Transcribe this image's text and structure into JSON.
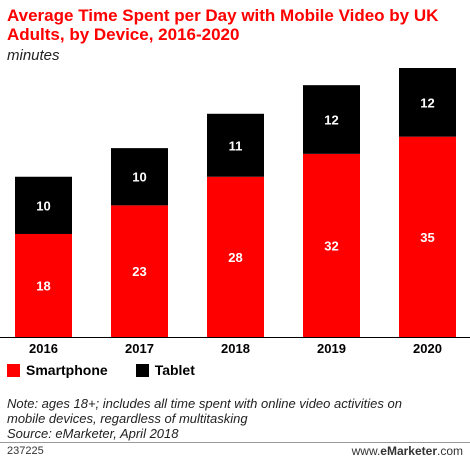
{
  "title": "Average Time Spent per Day with Mobile Video by UK Adults, by Device, 2016-2020",
  "subtitle": "minutes",
  "note_lines": [
    "Note: ages 18+; includes all time spent with online video activities on",
    "mobile devices, regardless of multitasking",
    "Source: eMarketer, April 2018"
  ],
  "footer_id": "237225",
  "brand": {
    "prefix": "www.",
    "name": "eMarketer",
    "suffix": ".com"
  },
  "colors": {
    "smartphone": "#ff0000",
    "tablet": "#000000"
  },
  "chart_data": {
    "type": "bar",
    "stacked": true,
    "categories": [
      "2016",
      "2017",
      "2018",
      "2019",
      "2020"
    ],
    "series": [
      {
        "name": "Smartphone",
        "values": [
          18,
          23,
          28,
          32,
          35
        ]
      },
      {
        "name": "Tablet",
        "values": [
          10,
          10,
          11,
          12,
          12
        ]
      }
    ],
    "ylim": [
      0,
      47
    ],
    "grid": false,
    "legend": "bottom-left"
  }
}
